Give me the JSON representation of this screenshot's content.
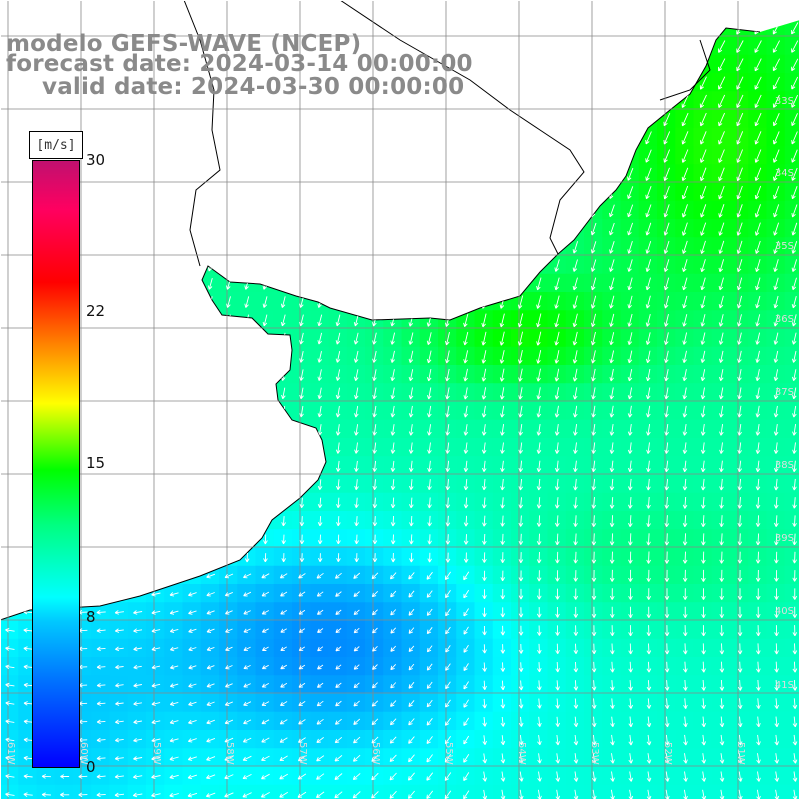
{
  "title": {
    "model": "modelo GEFS-WAVE (NCEP)",
    "forecast": "forecast date: 2024-03-14 00:00:00",
    "valid": "valid date: 2024-03-30 00:00:00"
  },
  "colorbar": {
    "unit": "[m/s]",
    "min": 0,
    "max": 30,
    "ticks": [
      {
        "value": 30,
        "label": "30"
      },
      {
        "value": 22,
        "label": "22"
      },
      {
        "value": 15,
        "label": "15"
      },
      {
        "value": 8,
        "label": "8"
      },
      {
        "value": 0,
        "label": "0"
      }
    ],
    "colors": [
      "#0000ff",
      "#00c8ff",
      "#00ffff",
      "#00ff80",
      "#00ff00",
      "#ffff00",
      "#ff8000",
      "#ff0000",
      "#c0106f"
    ]
  },
  "axes": {
    "lat_labels": [
      "33S",
      "34S",
      "35S",
      "36S",
      "37S",
      "38S",
      "39S",
      "40S",
      "41S"
    ],
    "lon_labels": [
      "61W",
      "60W",
      "59W",
      "58W",
      "57W",
      "56W",
      "55W",
      "54W",
      "53W",
      "52W",
      "51W"
    ]
  },
  "colors": {
    "land": "#ffffff",
    "coast": "#000000",
    "grid": "#888888",
    "arrow": "#ffffff"
  },
  "icons": [
    "wind-arrow-icon"
  ]
}
